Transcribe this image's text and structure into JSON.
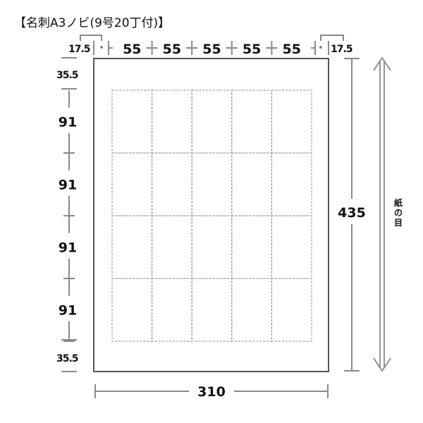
{
  "title": "【名刺A3ノビ(9号20丁付)】",
  "top_dims": {
    "left_margin": "17.5",
    "columns": [
      "55",
      "55",
      "55",
      "55",
      "55"
    ],
    "right_margin": "17.5"
  },
  "left_dims": {
    "top_margin": "35.5",
    "rows": [
      "91",
      "91",
      "91",
      "91"
    ],
    "bottom_margin": "35.5"
  },
  "width_label": "310",
  "height_label": "435",
  "grain_label": [
    "紙",
    "の",
    "目"
  ],
  "layout": {
    "columns": 5,
    "rows": 4
  }
}
